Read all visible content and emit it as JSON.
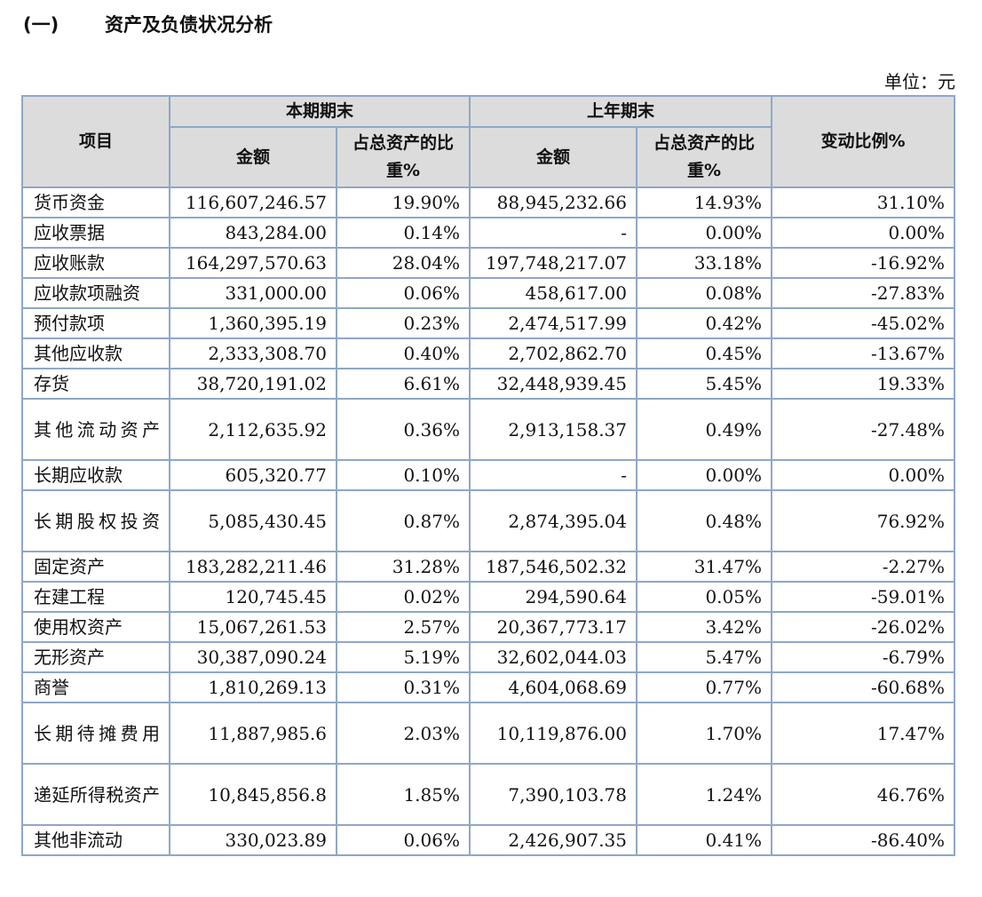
{
  "heading": {
    "number": "(一)",
    "title": "资产及负债状况分析"
  },
  "unit_label": "单位：元",
  "table": {
    "header": {
      "item": "项目",
      "current_period": "本期期末",
      "previous_year": "上年期末",
      "amount": "金额",
      "share_of_total": "占总资产的比重%",
      "change_ratio": "变动比例%"
    },
    "rows": [
      {
        "item": "货币资金",
        "cur_amount": "116,607,246.57",
        "cur_pct": "19.90%",
        "prev_amount": "88,945,232.66",
        "prev_pct": "14.93%",
        "change": "31.10%"
      },
      {
        "item": "应收票据",
        "cur_amount": "843,284.00",
        "cur_pct": "0.14%",
        "prev_amount": "-",
        "prev_pct": "0.00%",
        "change": "0.00%"
      },
      {
        "item": "应收账款",
        "cur_amount": "164,297,570.63",
        "cur_pct": "28.04%",
        "prev_amount": "197,748,217.07",
        "prev_pct": "33.18%",
        "change": "-16.92%"
      },
      {
        "item": "应收款项融资",
        "cur_amount": "331,000.00",
        "cur_pct": "0.06%",
        "prev_amount": "458,617.00",
        "prev_pct": "0.08%",
        "change": "-27.83%"
      },
      {
        "item": "预付款项",
        "cur_amount": "1,360,395.19",
        "cur_pct": "0.23%",
        "prev_amount": "2,474,517.99",
        "prev_pct": "0.42%",
        "change": "-45.02%"
      },
      {
        "item": "其他应收款",
        "cur_amount": "2,333,308.70",
        "cur_pct": "0.40%",
        "prev_amount": "2,702,862.70",
        "prev_pct": "0.45%",
        "change": "-13.67%"
      },
      {
        "item": "存货",
        "cur_amount": "38,720,191.02",
        "cur_pct": "6.61%",
        "prev_amount": "32,448,939.45",
        "prev_pct": "5.45%",
        "change": "19.33%"
      },
      {
        "item": "其他流动资产",
        "cur_amount": "2,112,635.92",
        "cur_pct": "0.36%",
        "prev_amount": "2,913,158.37",
        "prev_pct": "0.49%",
        "change": "-27.48%"
      },
      {
        "item": "长期应收款",
        "cur_amount": "605,320.77",
        "cur_pct": "0.10%",
        "prev_amount": "-",
        "prev_pct": "0.00%",
        "change": "0.00%"
      },
      {
        "item": "长期股权投资",
        "cur_amount": "5,085,430.45",
        "cur_pct": "0.87%",
        "prev_amount": "2,874,395.04",
        "prev_pct": "0.48%",
        "change": "76.92%"
      },
      {
        "item": "固定资产",
        "cur_amount": "183,282,211.46",
        "cur_pct": "31.28%",
        "prev_amount": "187,546,502.32",
        "prev_pct": "31.47%",
        "change": "-2.27%"
      },
      {
        "item": "在建工程",
        "cur_amount": "120,745.45",
        "cur_pct": "0.02%",
        "prev_amount": "294,590.64",
        "prev_pct": "0.05%",
        "change": "-59.01%"
      },
      {
        "item": "使用权资产",
        "cur_amount": "15,067,261.53",
        "cur_pct": "2.57%",
        "prev_amount": "20,367,773.17",
        "prev_pct": "3.42%",
        "change": "-26.02%"
      },
      {
        "item": "无形资产",
        "cur_amount": "30,387,090.24",
        "cur_pct": "5.19%",
        "prev_amount": "32,602,044.03",
        "prev_pct": "5.47%",
        "change": "-6.79%"
      },
      {
        "item": "商誉",
        "cur_amount": "1,810,269.13",
        "cur_pct": "0.31%",
        "prev_amount": "4,604,068.69",
        "prev_pct": "0.77%",
        "change": "-60.68%"
      },
      {
        "item": "长期待摊费用",
        "cur_amount": "11,887,985.6",
        "cur_pct": "2.03%",
        "prev_amount": "10,119,876.00",
        "prev_pct": "1.70%",
        "change": "17.47%"
      },
      {
        "item": "递延所得税资产",
        "cur_amount": "10,845,856.8",
        "cur_pct": "1.85%",
        "prev_amount": "7,390,103.78",
        "prev_pct": "1.24%",
        "change": "46.76%"
      },
      {
        "item": "其他非流动",
        "cur_amount": "330,023.89",
        "cur_pct": "0.06%",
        "prev_amount": "2,426,907.35",
        "prev_pct": "0.41%",
        "change": "-86.40%"
      }
    ]
  }
}
